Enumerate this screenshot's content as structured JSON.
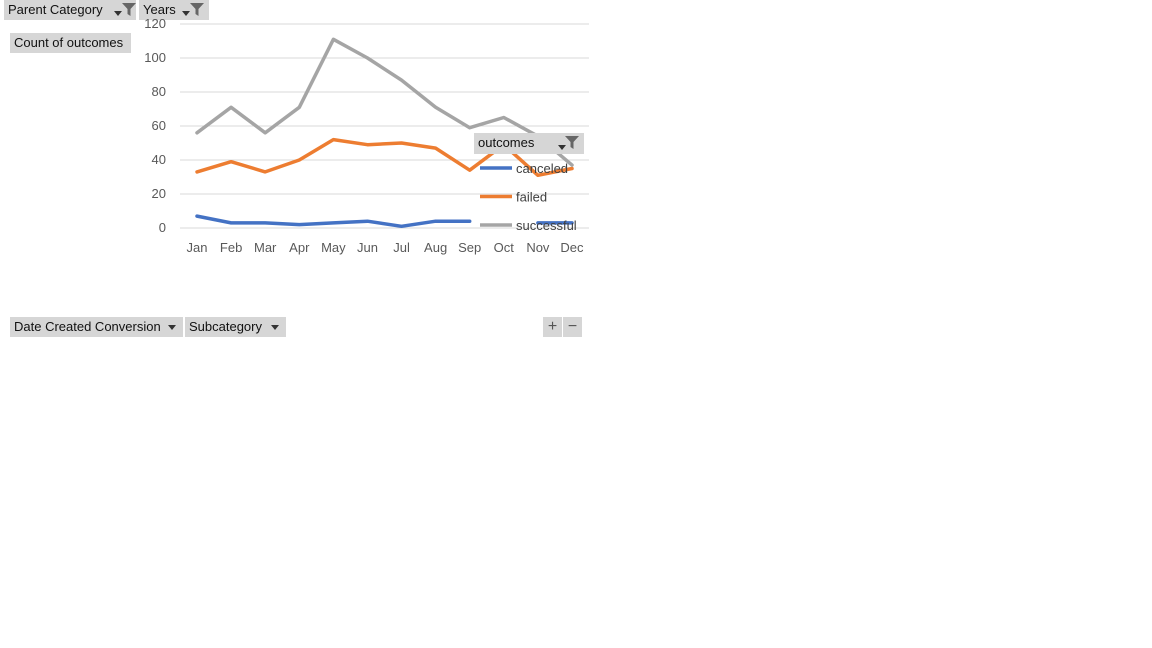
{
  "filters": {
    "parent_category": "Parent Category",
    "years": "Years"
  },
  "values_field": "Count of outcomes",
  "legend": {
    "title": "outcomes"
  },
  "axis_fields": {
    "date": "Date Created Conversion",
    "subcategory": "Subcategory"
  },
  "zoom": {
    "plus": "+",
    "minus": "−"
  },
  "chart_data": {
    "type": "line",
    "categories": [
      "Jan",
      "Feb",
      "Mar",
      "Apr",
      "May",
      "Jun",
      "Jul",
      "Aug",
      "Sep",
      "Oct",
      "Nov",
      "Dec"
    ],
    "ylim": [
      0,
      120
    ],
    "yticks": [
      0,
      20,
      40,
      60,
      80,
      100,
      120
    ],
    "grid": true,
    "legend_position": "right",
    "series": [
      {
        "name": "canceled",
        "color": "#4472c4",
        "values": [
          7,
          3,
          3,
          2,
          3,
          4,
          1,
          4,
          4,
          null,
          3,
          3
        ]
      },
      {
        "name": "failed",
        "color": "#ed7d31",
        "values": [
          33,
          39,
          33,
          40,
          52,
          49,
          50,
          47,
          34,
          49,
          31,
          35
        ]
      },
      {
        "name": "successful",
        "color": "#a5a5a5",
        "values": [
          56,
          71,
          56,
          71,
          111,
          100,
          87,
          71,
          59,
          65,
          54,
          37
        ]
      }
    ]
  }
}
